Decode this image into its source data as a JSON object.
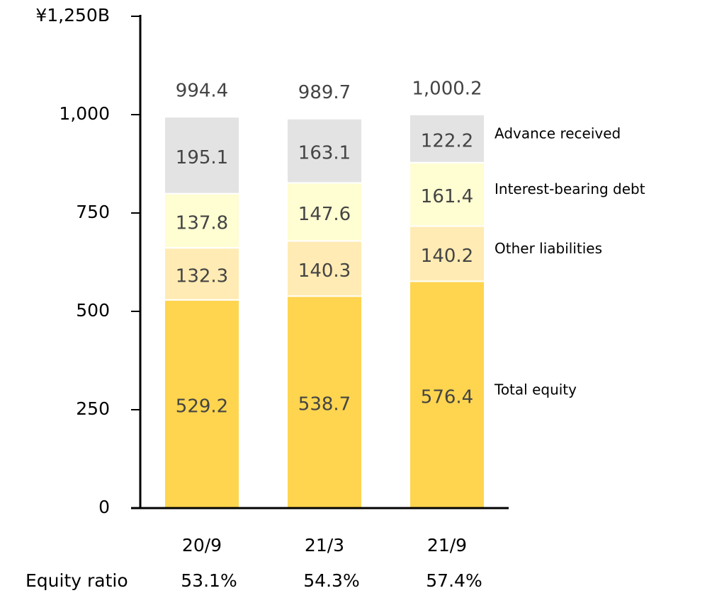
{
  "chart_data": {
    "type": "stacked_bar",
    "categories": [
      "20/9",
      "21/3",
      "21/9"
    ],
    "series": [
      {
        "name": "Total equity",
        "color": "#ffd54f",
        "values": [
          529.2,
          538.7,
          576.4
        ]
      },
      {
        "name": "Other liabilities",
        "color": "#ffebb3",
        "values": [
          132.3,
          140.3,
          140.2
        ]
      },
      {
        "name": "Interest-bearing debt",
        "color": "#fffdd2",
        "values": [
          137.8,
          147.6,
          161.4
        ]
      },
      {
        "name": "Advance received",
        "color": "#e3e3e3",
        "values": [
          195.1,
          163.1,
          122.2
        ]
      }
    ],
    "totals": {
      "values": [
        994.4,
        989.7,
        1000.2
      ],
      "value_labels": [
        "994.4",
        "989.7",
        "1,000.2"
      ]
    },
    "equity_ratio": {
      "label": "Equity ratio",
      "values": [
        53.1,
        54.3,
        57.4
      ],
      "value_labels": [
        "53.1%",
        "54.3%",
        "57.4%"
      ]
    },
    "ylim": [
      0,
      1250
    ],
    "yticks": [
      0,
      250,
      500,
      750,
      {
        "value": 1000,
        "label": "1,000"
      },
      {
        "value": 1250,
        "label": "¥1,250B"
      }
    ]
  }
}
